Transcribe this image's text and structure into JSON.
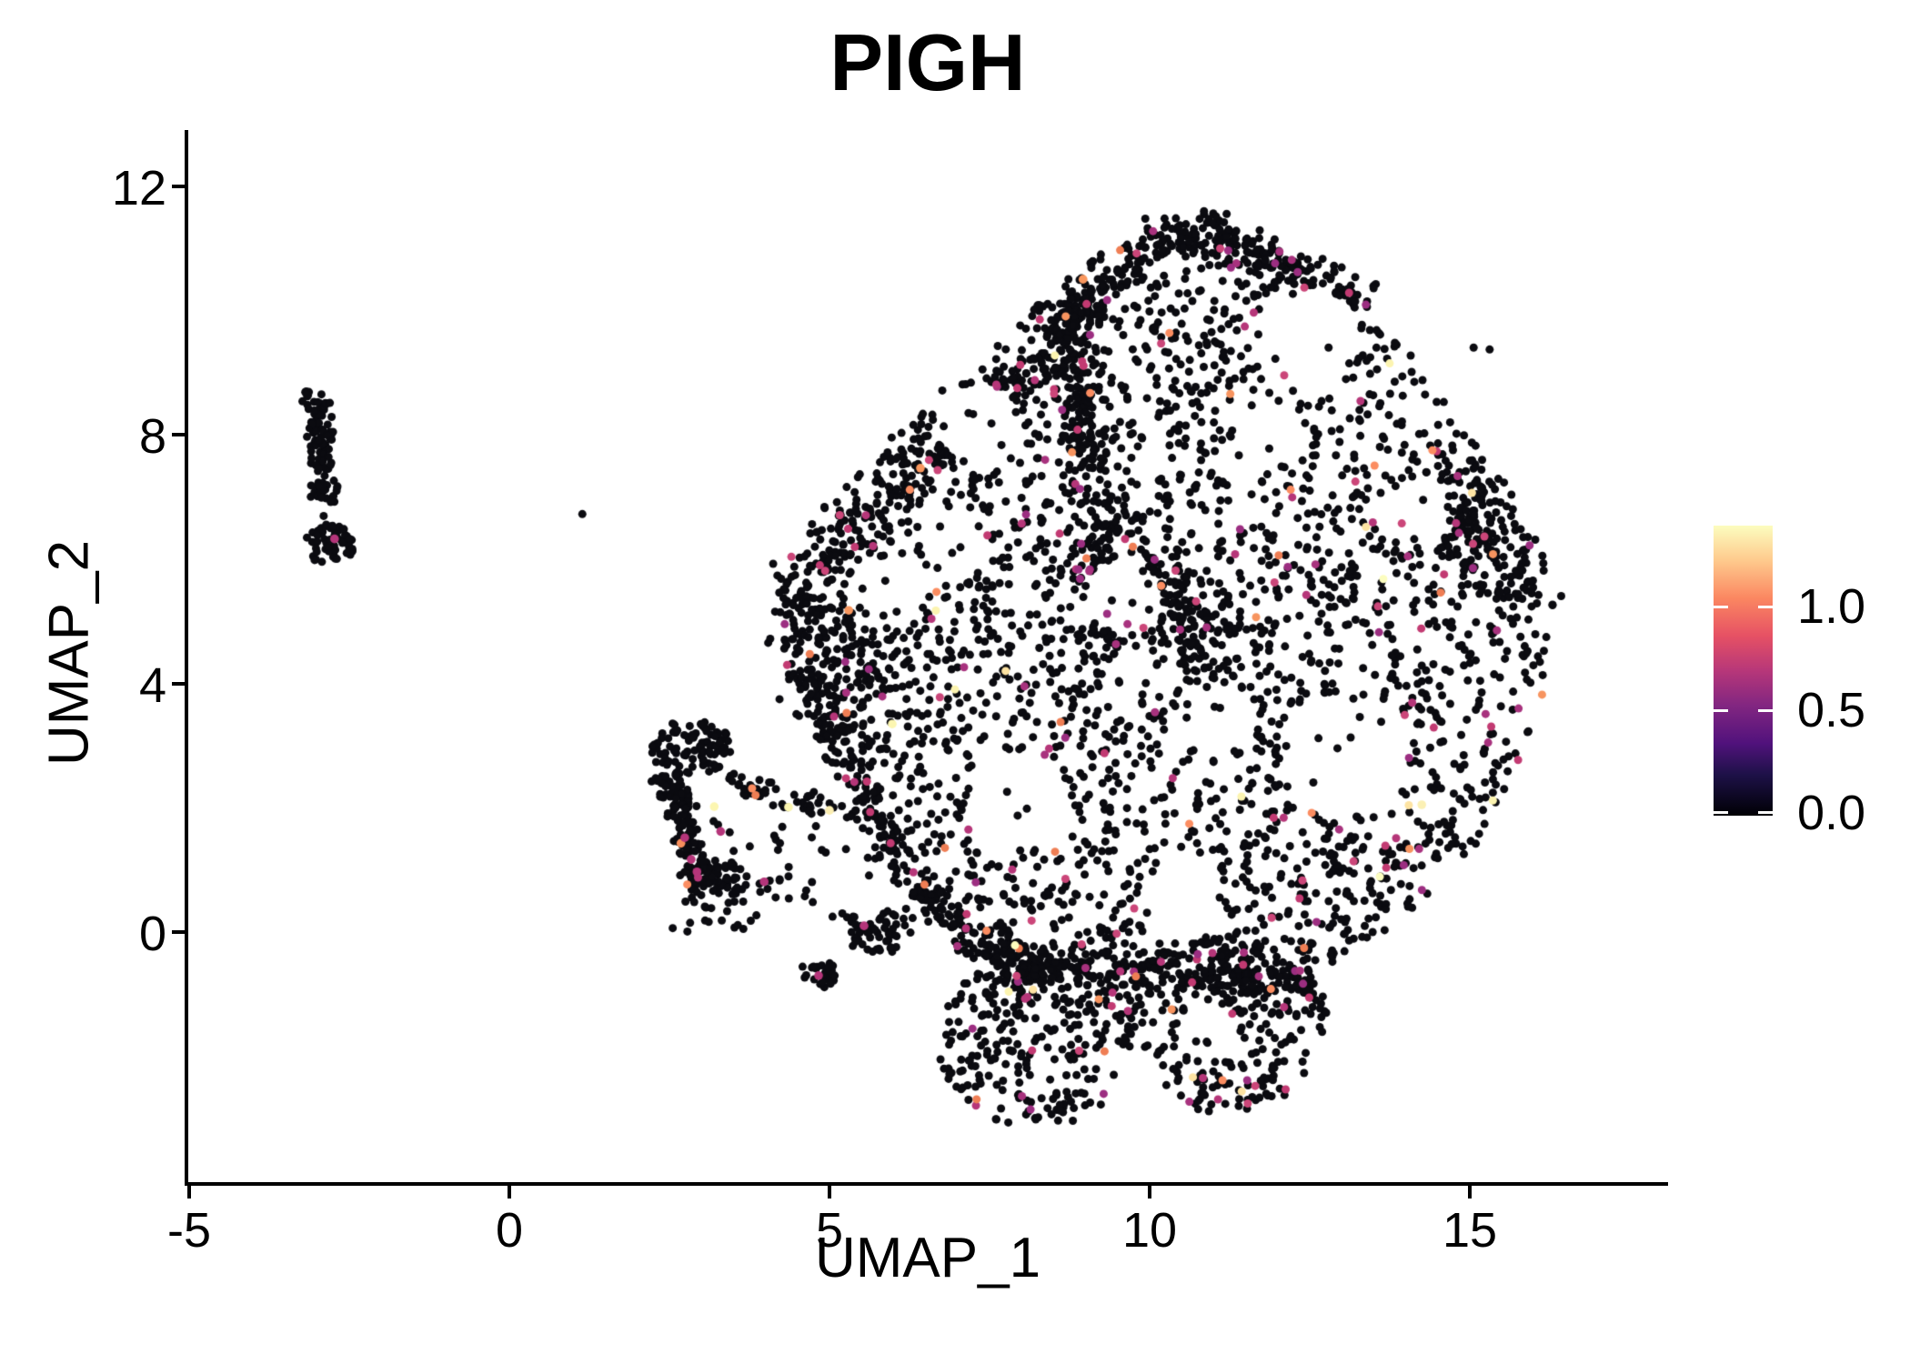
{
  "title": "PIGH",
  "axes": {
    "x": {
      "label": "UMAP_1",
      "tick_labels": [
        "-5",
        "0",
        "5",
        "10",
        "15"
      ]
    },
    "y": {
      "label": "UMAP_2",
      "tick_labels": [
        "12",
        "8",
        "4",
        "0"
      ]
    }
  },
  "legend": {
    "tick_labels": [
      "1.0",
      "0.5",
      "0.0"
    ],
    "colormap": "magma"
  },
  "chart_data": {
    "type": "scatter",
    "title": "PIGH",
    "xlabel": "UMAP_1",
    "ylabel": "UMAP_2",
    "xlim": [
      -5.05,
      18.1
    ],
    "ylim": [
      -4.15,
      12.9
    ],
    "x_ticks": [
      -5,
      0,
      5,
      10,
      15
    ],
    "y_ticks": [
      12,
      8,
      4,
      0
    ],
    "grid": false,
    "legend_position": "right",
    "color_scale": {
      "palette": "magma",
      "domain": [
        0.0,
        1.4
      ],
      "legend_ticks": [
        1.0,
        0.5,
        0.0
      ]
    },
    "point_black": "#0b0b10",
    "palette": {
      "magenta": [
        "#b63679",
        "#a8327e",
        "#c23a72",
        "#9c2e81",
        "#cb4679"
      ],
      "orange": [
        "#fb8d61",
        "#f7945f",
        "#ef7e54"
      ],
      "light": [
        "#fcf4b0",
        "#fde3a2",
        "#fcfdbf"
      ]
    },
    "seed": 1337,
    "dot_radius": 4.5,
    "clusters": [
      {
        "name": "far-left-sliver",
        "colored_prob": 0.0,
        "shapes": [
          {
            "kind": "band",
            "from": [
              -3.01,
              8.74
            ],
            "to": [
              -2.84,
              6.88
            ],
            "halfwidth": 0.17,
            "n": 115
          },
          {
            "kind": "ellipse",
            "center": [
              -2.81,
              6.25
            ],
            "rx": 0.4,
            "ry": 0.33,
            "n": 55
          }
        ]
      },
      {
        "name": "mid-left-hook",
        "colored_prob": 0.012,
        "shapes": [
          {
            "kind": "ellipse",
            "center": [
              2.84,
              2.97
            ],
            "rx": 0.64,
            "ry": 0.45,
            "n": 95
          },
          {
            "kind": "band",
            "from": [
              2.49,
              2.56
            ],
            "to": [
              2.98,
              0.88
            ],
            "halfwidth": 0.2,
            "n": 120
          },
          {
            "kind": "ellipse",
            "center": [
              3.27,
              0.73
            ],
            "rx": 0.5,
            "ry": 0.42,
            "n": 70
          },
          {
            "kind": "band",
            "from": [
              3.41,
              2.42
            ],
            "to": [
              5.4,
              1.9
            ],
            "halfwidth": 0.14,
            "n": 55
          },
          {
            "kind": "rect",
            "x0": 2.5,
            "x1": 5.7,
            "y0": 0.0,
            "y1": 1.8,
            "n": 55
          },
          {
            "kind": "ellipse",
            "center": [
              5.75,
              0.0
            ],
            "rx": 0.57,
            "ry": 0.37,
            "n": 55
          },
          {
            "kind": "ellipse",
            "center": [
              4.83,
              -0.69
            ],
            "rx": 0.33,
            "ry": 0.25,
            "n": 30
          }
        ]
      },
      {
        "name": "main-blob",
        "colored_prob": 0.035,
        "colored_x_boost": {
          "from": 8,
          "to": 16,
          "factor": 2.0
        },
        "voids": [
          [
            7.32,
            8.2,
            0.64
          ],
          [
            12.43,
            9.52,
            0.85
          ],
          [
            13.07,
            2.85,
            1.0
          ],
          [
            7.95,
            2.12,
            0.8
          ],
          [
            10.51,
            0.51,
            0.7
          ],
          [
            9.59,
            5.42,
            0.6
          ],
          [
            14.2,
            6.73,
            0.55
          ],
          [
            11.15,
            3.44,
            0.55
          ],
          [
            11.86,
            7.98,
            0.55
          ],
          [
            6.11,
            5.64,
            0.48
          ],
          [
            6.9,
            6.4,
            0.5
          ],
          [
            9.75,
            -2.35,
            0.5
          ],
          [
            10.9,
            -1.55,
            0.45
          ],
          [
            12.5,
            -2.05,
            0.45
          ]
        ],
        "shapes": [
          {
            "kind": "polygon",
            "n": 2500,
            "vertices": [
              [
                4.05,
                5.17
              ],
              [
                4.83,
                6.81
              ],
              [
                6.25,
                8.27
              ],
              [
                7.67,
                9.59
              ],
              [
                9.09,
                10.91
              ],
              [
                10.61,
                11.68
              ],
              [
                11.93,
                11.08
              ],
              [
                13.35,
                10.18
              ],
              [
                14.42,
                8.86
              ],
              [
                15.34,
                7.61
              ],
              [
                16.12,
                6.22
              ],
              [
                16.31,
                5.05
              ],
              [
                16.12,
                3.73
              ],
              [
                15.74,
                2.56
              ],
              [
                15.13,
                1.46
              ],
              [
                14.28,
                0.51
              ],
              [
                13.28,
                -0.29
              ],
              [
                12.29,
                -0.81
              ],
              [
                11.08,
                -1.02
              ],
              [
                9.73,
                -1.07
              ],
              [
                8.38,
                -0.83
              ],
              [
                7.07,
                -0.22
              ],
              [
                6.25,
                0.63
              ],
              [
                5.51,
                1.8
              ],
              [
                4.8,
                3.29
              ],
              [
                4.23,
                4.49
              ]
            ]
          },
          {
            "kind": "band",
            "from": [
              4.25,
              5.3
            ],
            "to": [
              10.5,
              11.45
            ],
            "halfwidth": 0.3,
            "n": 330
          },
          {
            "kind": "band",
            "from": [
              8.65,
              10.2
            ],
            "to": [
              9.4,
              4.4
            ],
            "halfwidth": 0.28,
            "n": 260
          },
          {
            "kind": "band",
            "from": [
              4.55,
              4.25
            ],
            "to": [
              6.35,
              0.7
            ],
            "halfwidth": 0.26,
            "n": 160
          },
          {
            "kind": "band",
            "from": [
              6.35,
              0.7
            ],
            "to": [
              8.3,
              -0.85
            ],
            "halfwidth": 0.28,
            "n": 150
          },
          {
            "kind": "band",
            "from": [
              7.4,
              -0.35
            ],
            "to": [
              12.6,
              -0.85
            ],
            "halfwidth": 0.25,
            "n": 200
          },
          {
            "kind": "band",
            "from": [
              10.7,
              11.4
            ],
            "to": [
              13.4,
              10.1
            ],
            "halfwidth": 0.28,
            "n": 130
          },
          {
            "kind": "band",
            "from": [
              14.6,
              7.4
            ],
            "to": [
              15.9,
              5.0
            ],
            "halfwidth": 0.5,
            "n": 150
          },
          {
            "kind": "band",
            "from": [
              9.8,
              6.0
            ],
            "to": [
              11.2,
              4.2
            ],
            "halfwidth": 0.5,
            "n": 130
          },
          {
            "kind": "band",
            "from": [
              4.3,
              5.1
            ],
            "to": [
              6.0,
              4.0
            ],
            "halfwidth": 0.5,
            "n": 120
          },
          {
            "kind": "ellipse",
            "center": [
              8.24,
              -1.76
            ],
            "rx": 1.56,
            "ry": 1.39,
            "n": 280
          },
          {
            "kind": "ellipse",
            "center": [
              11.15,
              -1.46
            ],
            "rx": 1.63,
            "ry": 1.47,
            "n": 280
          }
        ]
      }
    ],
    "singles_black": [
      [
        1.14,
        6.73
      ],
      [
        4.12,
        5.93
      ],
      [
        4.22,
        3.75
      ],
      [
        15.06,
        9.41
      ],
      [
        15.31,
        9.38
      ],
      [
        -2.9,
        6.7
      ],
      [
        -2.86,
        6.56
      ],
      [
        -2.76,
        6.54
      ]
    ],
    "singles_colored": [
      {
        "xy": [
          3.2,
          2.02
        ],
        "color": "#fcf6b1"
      },
      {
        "xy": [
          4.36,
          2.01
        ],
        "color": "#fcf6b1"
      },
      {
        "xy": [
          5.0,
          1.96
        ],
        "color": "#fbeeb2"
      },
      {
        "xy": [
          5.98,
          3.35
        ],
        "color": "#fcf6b1"
      },
      {
        "xy": [
          14.25,
          2.05
        ],
        "color": "#fbf0b4"
      },
      {
        "xy": [
          2.68,
          1.43
        ],
        "color": "#f78f5d"
      },
      {
        "xy": [
          8.96,
          10.51
        ],
        "color": "#f9975e"
      },
      {
        "xy": [
          6.42,
          7.47
        ],
        "color": "#f9975e"
      },
      {
        "xy": [
          5.3,
          5.18
        ],
        "color": "#f9975e"
      },
      {
        "xy": [
          2.74,
          1.52
        ],
        "color": "#b5357a"
      },
      {
        "xy": [
          2.84,
          1.17
        ],
        "color": "#b5357a"
      },
      {
        "xy": [
          2.93,
          0.97
        ],
        "color": "#b5357a"
      },
      {
        "xy": [
          3.98,
          0.81
        ],
        "color": "#b5357a"
      },
      {
        "xy": [
          4.83,
          -0.7
        ],
        "color": "#b5357a"
      },
      {
        "xy": [
          5.54,
          0.1
        ],
        "color": "#b5357a"
      },
      {
        "xy": [
          3.3,
          1.62
        ],
        "color": "#b5357a"
      },
      {
        "xy": [
          -2.73,
          6.33
        ],
        "color": "#b5357a"
      }
    ]
  }
}
